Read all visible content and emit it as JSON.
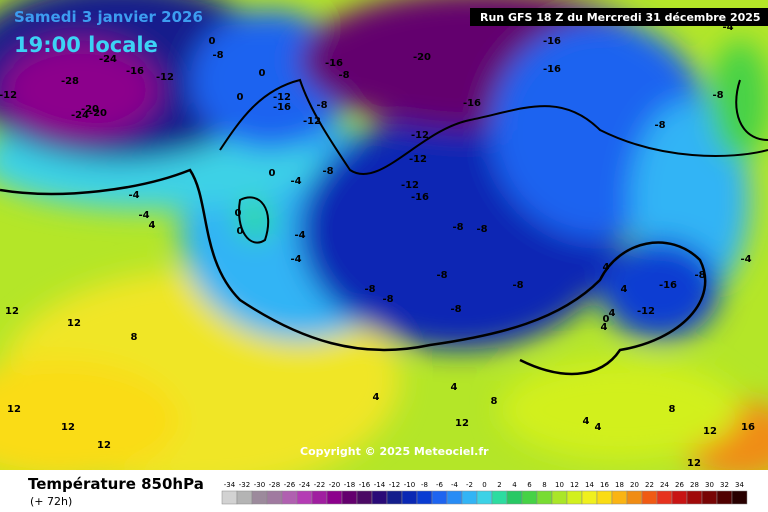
{
  "header": {
    "date": "Samedi 3 janvier 2026",
    "time": "19:00 locale",
    "run": "Run GFS 18 Z du Mercredi 31 décembre 2025"
  },
  "copyright": "Copyright © 2025 Meteociel.fr",
  "footer": {
    "title": "Température 850hPa",
    "lead": "(+ 72h)"
  },
  "legend": {
    "ticks": [
      -34,
      -32,
      -30,
      -28,
      -26,
      -24,
      -22,
      -20,
      -18,
      -16,
      -14,
      -12,
      -10,
      -8,
      -6,
      -4,
      -2,
      0,
      2,
      4,
      6,
      8,
      10,
      12,
      14,
      16,
      18,
      20,
      22,
      24,
      26,
      28,
      30,
      32,
      34
    ],
    "colors": [
      "#d2d2d2",
      "#b4b4b4",
      "#9c8a9c",
      "#a07aa0",
      "#b060b0",
      "#b43cb4",
      "#a01ea0",
      "#8c008c",
      "#64006e",
      "#4b0a64",
      "#2a0a78",
      "#141e8c",
      "#0a28b4",
      "#0a3cd2",
      "#1e64f0",
      "#288cf5",
      "#32b4f5",
      "#3cd2e6",
      "#2ddca0",
      "#28c864",
      "#46d246",
      "#78dc32",
      "#aae628",
      "#d2f01e",
      "#f0f01e",
      "#fadc14",
      "#fab414",
      "#f08c14",
      "#f05a14",
      "#e6321e",
      "#c81414",
      "#a00a0a",
      "#780505",
      "#500000",
      "#280000"
    ]
  },
  "labels": [
    "-24",
    "-28",
    "-20",
    "-24",
    "-20",
    "-16",
    "-12",
    "-12",
    "0",
    "0",
    "0",
    "-8",
    "-12",
    "-16",
    "-12",
    "-8",
    "-16",
    "-8",
    "-20",
    "-16",
    "-16",
    "-16",
    "-12",
    "-12",
    "-12",
    "-16",
    "-8",
    "-8",
    "-4",
    "0",
    "0",
    "0",
    "-4",
    "-4",
    "-8",
    "-8",
    "-8",
    "-8",
    "-8",
    "-8",
    "-8",
    "-4",
    "-4",
    "4",
    "8",
    "12",
    "12",
    "12",
    "12",
    "12",
    "4",
    "4",
    "8",
    "12",
    "4",
    "4",
    "8",
    "12",
    "16",
    "12",
    "-8",
    "-12",
    "-16",
    "4",
    "4",
    "4",
    "0",
    "-4",
    "-8",
    "-4",
    "4"
  ]
}
